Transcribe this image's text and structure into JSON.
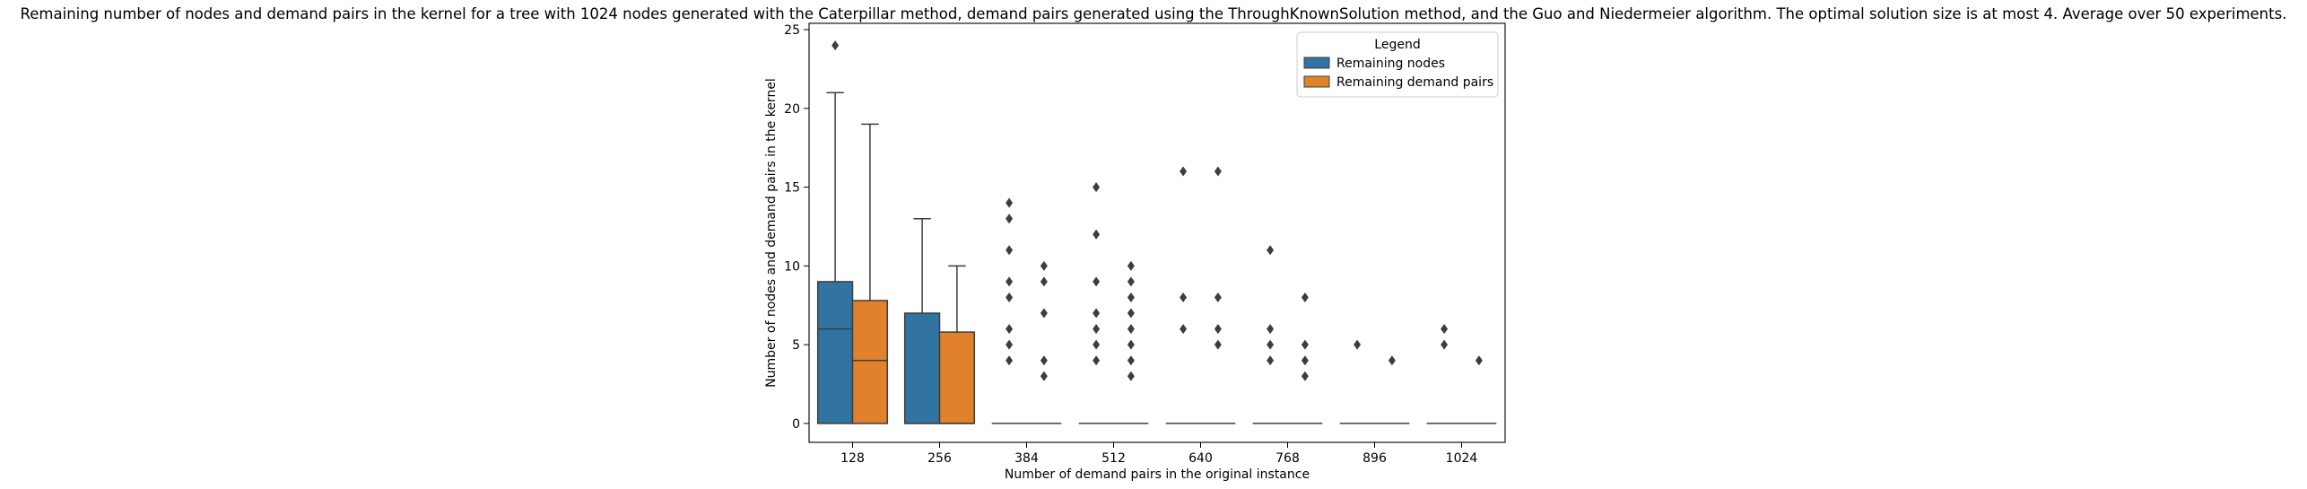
{
  "chart_data": {
    "type": "box",
    "title": "Remaining number of nodes and demand pairs in the kernel for a tree with 1024 nodes generated with the Caterpillar method, demand pairs generated using the ThroughKnownSolution method, and the Guo and Niedermeier algorithm. The optimal solution size is at most 4. Average over 50 experiments.",
    "xlabel": "Number of demand pairs in the original instance",
    "ylabel": "Number of nodes and demand pairs in the kernel",
    "categories": [
      "128",
      "256",
      "384",
      "512",
      "640",
      "768",
      "896",
      "1024"
    ],
    "yticks": [
      0,
      5,
      10,
      15,
      20,
      25
    ],
    "ylim": [
      -1.2,
      25.4
    ],
    "legend": {
      "title": "Legend",
      "position": "top-right",
      "entries": [
        "Remaining nodes",
        "Remaining demand pairs"
      ]
    },
    "series": [
      {
        "name": "Remaining nodes",
        "color": "#3274a1",
        "boxes": [
          {
            "q1": 0,
            "median": 6,
            "q3": 9,
            "whisker_low": 0,
            "whisker_high": 21,
            "outliers": [
              24
            ]
          },
          {
            "q1": 0,
            "median": 0,
            "q3": 7,
            "whisker_low": 0,
            "whisker_high": 13,
            "outliers": []
          },
          {
            "q1": 0,
            "median": 0,
            "q3": 0,
            "whisker_low": 0,
            "whisker_high": 0,
            "outliers": [
              4,
              5,
              6,
              8,
              9,
              11,
              13,
              14
            ]
          },
          {
            "q1": 0,
            "median": 0,
            "q3": 0,
            "whisker_low": 0,
            "whisker_high": 0,
            "outliers": [
              4,
              5,
              6,
              7,
              9,
              12,
              15
            ]
          },
          {
            "q1": 0,
            "median": 0,
            "q3": 0,
            "whisker_low": 0,
            "whisker_high": 0,
            "outliers": [
              6,
              8,
              16
            ]
          },
          {
            "q1": 0,
            "median": 0,
            "q3": 0,
            "whisker_low": 0,
            "whisker_high": 0,
            "outliers": [
              4,
              5,
              6,
              11
            ]
          },
          {
            "q1": 0,
            "median": 0,
            "q3": 0,
            "whisker_low": 0,
            "whisker_high": 0,
            "outliers": [
              5
            ]
          },
          {
            "q1": 0,
            "median": 0,
            "q3": 0,
            "whisker_low": 0,
            "whisker_high": 0,
            "outliers": [
              5,
              6
            ]
          }
        ]
      },
      {
        "name": "Remaining demand pairs",
        "color": "#e1812c",
        "boxes": [
          {
            "q1": 0,
            "median": 4,
            "q3": 7.8,
            "whisker_low": 0,
            "whisker_high": 19,
            "outliers": []
          },
          {
            "q1": 0,
            "median": 0,
            "q3": 5.8,
            "whisker_low": 0,
            "whisker_high": 10,
            "outliers": []
          },
          {
            "q1": 0,
            "median": 0,
            "q3": 0,
            "whisker_low": 0,
            "whisker_high": 0,
            "outliers": [
              3,
              4,
              7,
              9,
              10
            ]
          },
          {
            "q1": 0,
            "median": 0,
            "q3": 0,
            "whisker_low": 0,
            "whisker_high": 0,
            "outliers": [
              3,
              4,
              5,
              6,
              7,
              8,
              9,
              10
            ]
          },
          {
            "q1": 0,
            "median": 0,
            "q3": 0,
            "whisker_low": 0,
            "whisker_high": 0,
            "outliers": [
              5,
              6,
              8,
              16
            ]
          },
          {
            "q1": 0,
            "median": 0,
            "q3": 0,
            "whisker_low": 0,
            "whisker_high": 0,
            "outliers": [
              3,
              4,
              5,
              8
            ]
          },
          {
            "q1": 0,
            "median": 0,
            "q3": 0,
            "whisker_low": 0,
            "whisker_high": 0,
            "outliers": [
              4
            ]
          },
          {
            "q1": 0,
            "median": 0,
            "q3": 0,
            "whisker_low": 0,
            "whisker_high": 0,
            "outliers": [
              4
            ]
          }
        ]
      }
    ]
  }
}
